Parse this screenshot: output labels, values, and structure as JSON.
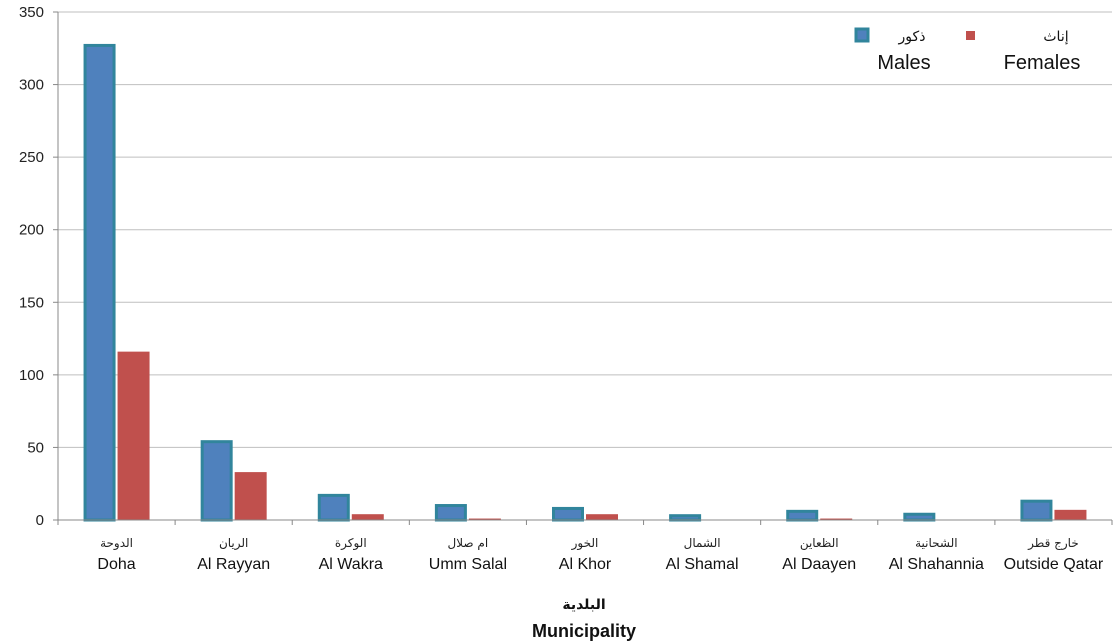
{
  "chart_data": {
    "type": "bar",
    "categories_ar": [
      "الدوحة",
      "الريان",
      "الوكرة",
      "ام صلال",
      "الخور",
      "الشمال",
      "الظعاين",
      "الشحانية",
      "خارج قطر"
    ],
    "categories": [
      "Doha",
      "Al Rayyan",
      "Al Wakra",
      "Umm Salal",
      "Al Khor",
      "Al Shamal",
      "Al Daayen",
      "Al Shahannia",
      "Outside Qatar"
    ],
    "series": [
      {
        "name": "Males",
        "name_ar": "ذكور",
        "color": "#4F81BD",
        "border": "#31859C",
        "values": [
          328,
          55,
          18,
          11,
          9,
          4,
          7,
          5,
          14
        ]
      },
      {
        "name": "Females",
        "name_ar": "إناث",
        "color": "#C0504D",
        "values": [
          116,
          33,
          4,
          1,
          4,
          0,
          1,
          0,
          7
        ]
      }
    ],
    "xlabel_ar": "البلدية",
    "xlabel": "Municipality",
    "ylabel": "",
    "ylim": [
      0,
      350
    ],
    "yticks": [
      0,
      50,
      100,
      150,
      200,
      250,
      300,
      350
    ],
    "grid": true,
    "legend_position": "top-right"
  }
}
